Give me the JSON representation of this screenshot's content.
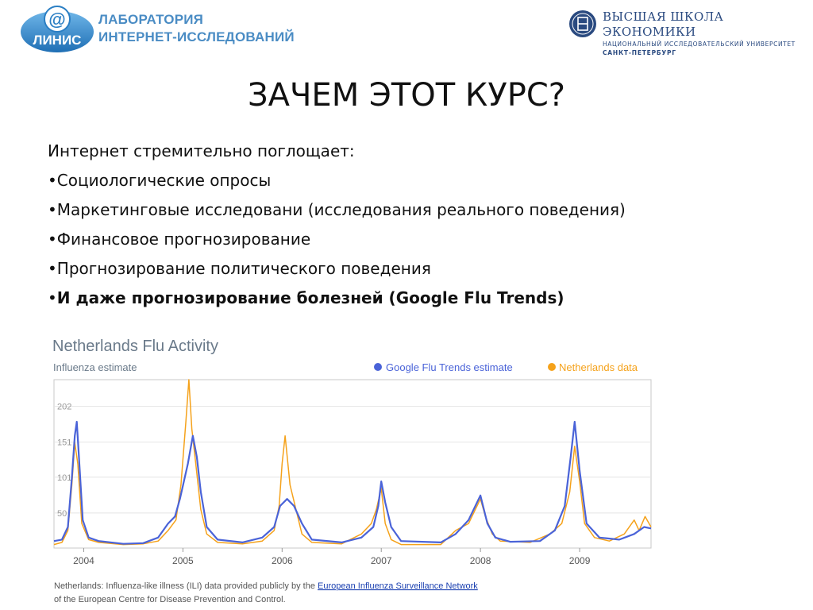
{
  "header": {
    "lab_logo_text": "ЛИНИС",
    "lab_title_line1": "ЛАБОРАТОРИЯ",
    "lab_title_line2": "ИНТЕРНЕТ-ИССЛЕДОВАНИЙ",
    "hse_name": "ВЫСШАЯ ШКОЛА ЭКОНОМИКИ",
    "hse_subtitle": "НАЦИОНАЛЬНЫЙ ИССЛЕДОВАТЕЛЬСКИЙ УНИВЕРСИТЕТ",
    "hse_city": "САНКТ-ПЕТЕРБУРГ"
  },
  "title": "ЗАЧЕМ ЭТОТ КУРС?",
  "body": {
    "intro": "Интернет стремительно поглощает:",
    "bullets": [
      "•Социологические опросы",
      "•Маркетинговые исследовани (исследования реального поведения)",
      "•Финансовое прогнозирование",
      "•Прогнозирование политического поведения"
    ],
    "bold_bullet_marker": "•",
    "bold_bullet_text": "И даже прогнозирование болезней (Google Flu Trends)"
  },
  "colors": {
    "google_series": "#4a63d8",
    "netherlands_series": "#f5a21b",
    "chart_title": "#6a7a8a",
    "lab_blue": "#4a8cc4",
    "hse_blue": "#2a4a80"
  },
  "chart_data": {
    "type": "line",
    "title": "Netherlands Flu Activity",
    "subtitle": "Influenza estimate",
    "ylabel": "",
    "xlabel": "",
    "yticks": [
      "202",
      "151",
      "101",
      "50"
    ],
    "ytick_values": [
      202,
      151,
      101,
      50
    ],
    "ylim": [
      0,
      240
    ],
    "xlim": [
      2003.7,
      2009.72
    ],
    "x_ticks": [
      "2004",
      "2005",
      "2006",
      "2007",
      "2008",
      "2009"
    ],
    "x_tick_values": [
      2004.0,
      2005.0,
      2006.0,
      2007.0,
      2008.0,
      2009.0
    ],
    "grid": "horizontal",
    "legend_position": "top-right",
    "source_note_before": "Netherlands: Influenza-like illness (ILI) data provided publicly by the ",
    "source_link": "European Influenza Surveillance Network",
    "source_note_after": " of the European Centre for Disease Prevention and Control.",
    "series": [
      {
        "name": "Google Flu Trends estimate",
        "points": [
          [
            2003.7,
            10
          ],
          [
            2003.78,
            12
          ],
          [
            2003.84,
            30
          ],
          [
            2003.88,
            100
          ],
          [
            2003.91,
            160
          ],
          [
            2003.93,
            180
          ],
          [
            2003.96,
            110
          ],
          [
            2003.99,
            40
          ],
          [
            2004.05,
            15
          ],
          [
            2004.15,
            10
          ],
          [
            2004.4,
            6
          ],
          [
            2004.6,
            7
          ],
          [
            2004.75,
            15
          ],
          [
            2004.85,
            35
          ],
          [
            2004.92,
            45
          ],
          [
            2004.97,
            70
          ],
          [
            2005.05,
            120
          ],
          [
            2005.1,
            160
          ],
          [
            2005.14,
            130
          ],
          [
            2005.18,
            80
          ],
          [
            2005.24,
            30
          ],
          [
            2005.35,
            12
          ],
          [
            2005.6,
            8
          ],
          [
            2005.8,
            15
          ],
          [
            2005.92,
            30
          ],
          [
            2005.98,
            60
          ],
          [
            2006.05,
            70
          ],
          [
            2006.12,
            60
          ],
          [
            2006.2,
            35
          ],
          [
            2006.3,
            12
          ],
          [
            2006.6,
            8
          ],
          [
            2006.8,
            15
          ],
          [
            2006.92,
            30
          ],
          [
            2006.97,
            60
          ],
          [
            2007.0,
            95
          ],
          [
            2007.04,
            65
          ],
          [
            2007.1,
            30
          ],
          [
            2007.2,
            10
          ],
          [
            2007.6,
            8
          ],
          [
            2007.75,
            20
          ],
          [
            2007.88,
            40
          ],
          [
            2008.0,
            75
          ],
          [
            2008.07,
            35
          ],
          [
            2008.15,
            15
          ],
          [
            2008.3,
            9
          ],
          [
            2008.6,
            10
          ],
          [
            2008.75,
            25
          ],
          [
            2008.85,
            60
          ],
          [
            2008.91,
            130
          ],
          [
            2008.95,
            180
          ],
          [
            2009.0,
            110
          ],
          [
            2009.07,
            35
          ],
          [
            2009.2,
            15
          ],
          [
            2009.4,
            12
          ],
          [
            2009.55,
            20
          ],
          [
            2009.65,
            30
          ],
          [
            2009.72,
            28
          ]
        ]
      },
      {
        "name": "Netherlands data",
        "points": [
          [
            2003.7,
            5
          ],
          [
            2003.78,
            8
          ],
          [
            2003.84,
            25
          ],
          [
            2003.88,
            90
          ],
          [
            2003.91,
            150
          ],
          [
            2003.94,
            120
          ],
          [
            2003.98,
            35
          ],
          [
            2004.05,
            12
          ],
          [
            2004.15,
            8
          ],
          [
            2004.4,
            5
          ],
          [
            2004.6,
            6
          ],
          [
            2004.75,
            10
          ],
          [
            2004.85,
            25
          ],
          [
            2004.93,
            40
          ],
          [
            2004.98,
            90
          ],
          [
            2005.03,
            180
          ],
          [
            2005.06,
            240
          ],
          [
            2005.09,
            170
          ],
          [
            2005.13,
            120
          ],
          [
            2005.18,
            55
          ],
          [
            2005.24,
            20
          ],
          [
            2005.35,
            8
          ],
          [
            2005.6,
            6
          ],
          [
            2005.8,
            10
          ],
          [
            2005.92,
            25
          ],
          [
            2005.97,
            60
          ],
          [
            2006.0,
            120
          ],
          [
            2006.03,
            160
          ],
          [
            2006.08,
            90
          ],
          [
            2006.14,
            55
          ],
          [
            2006.2,
            20
          ],
          [
            2006.3,
            8
          ],
          [
            2006.6,
            6
          ],
          [
            2006.8,
            20
          ],
          [
            2006.9,
            35
          ],
          [
            2006.95,
            55
          ],
          [
            2007.0,
            85
          ],
          [
            2007.04,
            35
          ],
          [
            2007.1,
            12
          ],
          [
            2007.2,
            5
          ],
          [
            2007.6,
            5
          ],
          [
            2007.75,
            25
          ],
          [
            2007.88,
            35
          ],
          [
            2008.0,
            70
          ],
          [
            2008.05,
            45
          ],
          [
            2008.12,
            20
          ],
          [
            2008.2,
            10
          ],
          [
            2008.5,
            8
          ],
          [
            2008.7,
            20
          ],
          [
            2008.82,
            35
          ],
          [
            2008.9,
            80
          ],
          [
            2008.95,
            145
          ],
          [
            2009.0,
            95
          ],
          [
            2009.05,
            35
          ],
          [
            2009.15,
            15
          ],
          [
            2009.3,
            10
          ],
          [
            2009.45,
            20
          ],
          [
            2009.55,
            40
          ],
          [
            2009.6,
            25
          ],
          [
            2009.66,
            45
          ],
          [
            2009.72,
            30
          ]
        ]
      }
    ]
  }
}
